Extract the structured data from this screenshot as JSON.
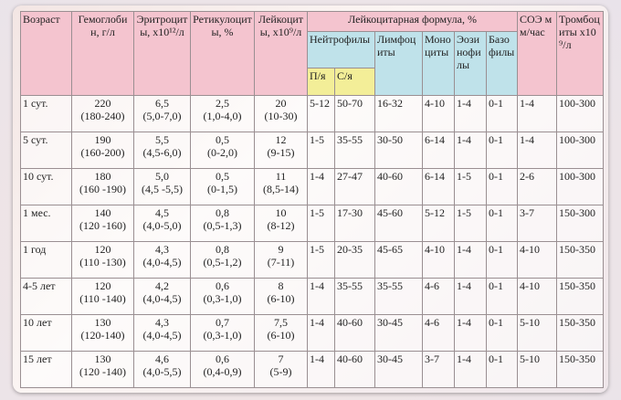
{
  "table": {
    "header": {
      "age": "Возраст",
      "hemoglobin": "Гемоглобин, г/л",
      "erythrocytes": "Эритроциты, x10¹²/л",
      "reticulocytes": "Ретикулоциты, %",
      "leukocytes": "Лейкоциты, x10⁹/л",
      "formula": "Лейкоцитарная формула, %",
      "neutrophils": "Нейтрофилы",
      "band": "П/я",
      "segmented": "С/я",
      "lymphocytes": "Лимфоциты",
      "monocytes": "Моноциты",
      "eosinophils": "Эозинофилы",
      "basophils": "Базофилы",
      "esr": "СОЭ мм/час",
      "platelets": "Тромбоциты x10⁹/л"
    },
    "rows": [
      [
        "1 сут.",
        "220\n(180-240)",
        "6,5\n(5,0-7,0)",
        "2,5\n(1,0-4,0)",
        "20\n(10-30)",
        "5-12",
        "50-70",
        "16-32",
        "4-10",
        "1-4",
        "0-1",
        "1-4",
        "100-300"
      ],
      [
        "5 сут.",
        "190\n(160-200)",
        "5,5\n(4,5-6,0)",
        "0,5\n(0-2,0)",
        "12\n(9-15)",
        "1-5",
        "35-55",
        "30-50",
        "6-14",
        "1-4",
        "0-1",
        "1-4",
        "100-300"
      ],
      [
        "10 сут.",
        "180\n(160 -190)",
        "5,0\n(4,5 -5,5)",
        "0,5\n(0-1,5)",
        "11\n(8,5-14)",
        "1-4",
        "27-47",
        "40-60",
        "6-14",
        "1-5",
        "0-1",
        "2-6",
        "100-300"
      ],
      [
        "1 мес.",
        "140\n(120 -160)",
        "4,5\n(4,0-5,0)",
        "0,8\n(0,5-1,3)",
        "10\n(8-12)",
        "1-5",
        "17-30",
        "45-60",
        "5-12",
        "1-5",
        "0-1",
        "3-7",
        "150-300"
      ],
      [
        "1 год",
        "120\n(110 -130)",
        "4,3\n(4,0-4,5)",
        "0,8\n(0,5-1,2)",
        "9\n(7-11)",
        "1-5",
        "20-35",
        "45-65",
        "4-10",
        "1-4",
        "0-1",
        "4-10",
        "150-350"
      ],
      [
        "4-5 лет",
        "120\n(110 -140)",
        "4,2\n(4,0-4,5)",
        "0,6\n(0,3-1,0)",
        "8\n(6-10)",
        "1-4",
        "35-55",
        "35-55",
        "4-6",
        "1-4",
        "0-1",
        "4-10",
        "150-350"
      ],
      [
        "10 лет",
        "130\n(120-140)",
        "4,3\n(4,0-4,5)",
        "0,7\n(0,3-1,0)",
        "7,5\n(6-10)",
        "1-4",
        "40-60",
        "30-45",
        "4-6",
        "1-4",
        "0-1",
        "5-10",
        "150-350"
      ],
      [
        "15 лет",
        "130\n(120 -140)",
        "4,6\n(4,0-5,5)",
        "0,6\n(0,4-0,9)",
        "7\n(5-9)",
        "1-4",
        "40-60",
        "30-45",
        "3-7",
        "1-4",
        "0-1",
        "5-10",
        "150-350"
      ]
    ]
  }
}
